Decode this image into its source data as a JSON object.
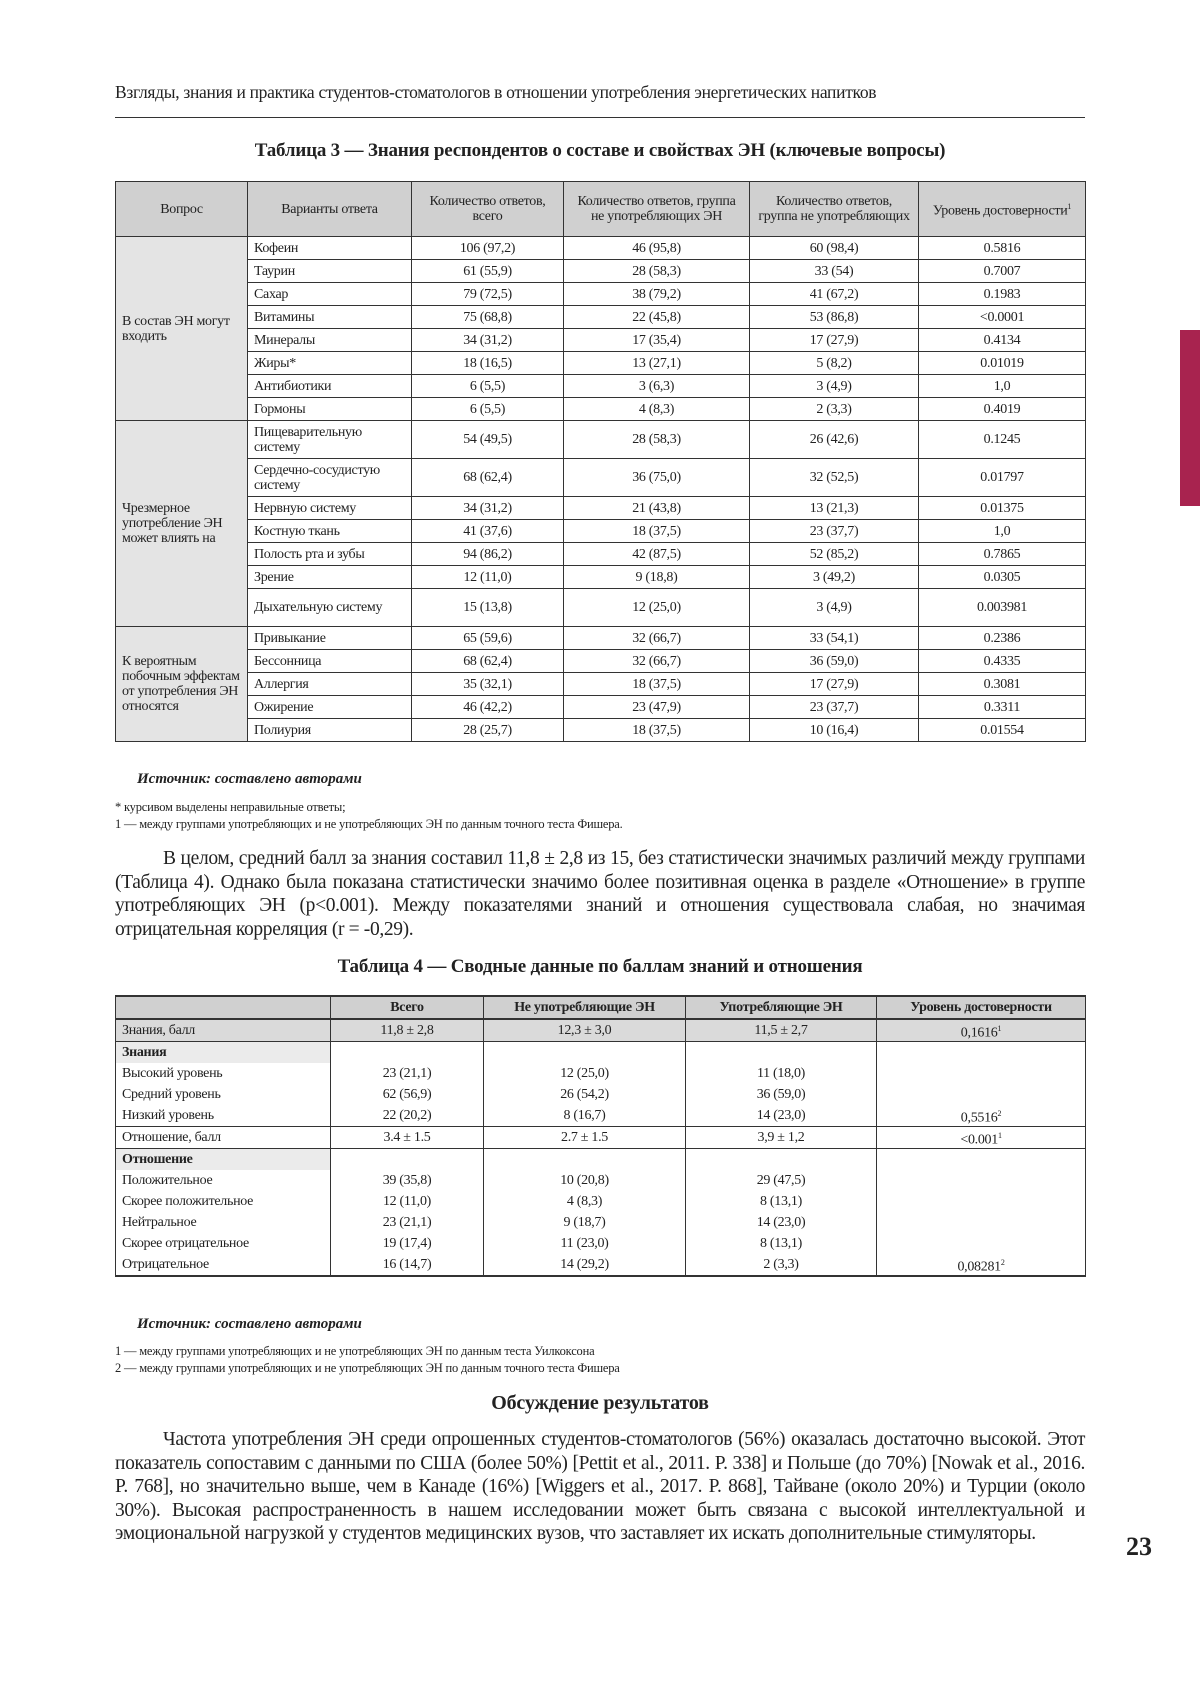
{
  "running_header": "Взгляды, знания и практика студентов-стоматологов в отношении употребления энергетических напитков",
  "table3": {
    "title": "Таблица 3 — Знания респондентов о составе и свойствах ЭН (ключевые вопросы)",
    "headers": [
      "Вопрос",
      "Варианты ответа",
      "Количество ответов, всего",
      "Количество ответов, группа не употребляющих ЭН",
      "Количество ответов, группа не употребляющих",
      "Уровень достоверности"
    ],
    "header_sup": "1",
    "groups": [
      {
        "question": "В состав ЭН могут входить",
        "rows": [
          [
            "Кофеин",
            "106 (97,2)",
            "46 (95,8)",
            "60 (98,4)",
            "0.5816"
          ],
          [
            "Таурин",
            "61 (55,9)",
            "28 (58,3)",
            "33 (54)",
            "0.7007"
          ],
          [
            "Сахар",
            "79 (72,5)",
            "38 (79,2)",
            "41 (67,2)",
            "0.1983"
          ],
          [
            "Витамины",
            "75 (68,8)",
            "22 (45,8)",
            "53 (86,8)",
            "<0.0001"
          ],
          [
            "Минералы",
            "34 (31,2)",
            "17 (35,4)",
            "17 (27,9)",
            "0.4134"
          ],
          [
            "Жиры*",
            "18 (16,5)",
            "13 (27,1)",
            "5 (8,2)",
            "0.01019"
          ],
          [
            "Антибиотики",
            "6 (5,5)",
            "3 (6,3)",
            "3 (4,9)",
            "1,0"
          ],
          [
            "Гормоны",
            "6 (5,5)",
            "4 (8,3)",
            "2 (3,3)",
            "0.4019"
          ]
        ]
      },
      {
        "question": "Чрезмерное употребление ЭН может влиять на",
        "rows": [
          [
            "Пищеварительную систему",
            "54 (49,5)",
            "28 (58,3)",
            "26 (42,6)",
            "0.1245"
          ],
          [
            "Сердечно-сосудистую систему",
            "68 (62,4)",
            "36 (75,0)",
            "32 (52,5)",
            "0.01797"
          ],
          [
            "Нервную систему",
            "34 (31,2)",
            "21 (43,8)",
            "13 (21,3)",
            "0.01375"
          ],
          [
            "Костную ткань",
            "41 (37,6)",
            "18 (37,5)",
            "23 (37,7)",
            "1,0"
          ],
          [
            "Полость рта и зубы",
            "94 (86,2)",
            "42 (87,5)",
            "52 (85,2)",
            "0.7865"
          ],
          [
            "Зрение",
            "12 (11,0)",
            "9 (18,8)",
            "3 (49,2)",
            "0.0305"
          ],
          [
            "Дыхательную систему",
            "15 (13,8)",
            "12 (25,0)",
            "3 (4,9)",
            "0.003981"
          ]
        ]
      },
      {
        "question": "К вероятным побочным эффектам от употребления ЭН относятся",
        "rows": [
          [
            "Привыкание",
            "65 (59,6)",
            "32 (66,7)",
            "33 (54,1)",
            "0.2386"
          ],
          [
            "Бессонница",
            "68 (62,4)",
            "32 (66,7)",
            "36 (59,0)",
            "0.4335"
          ],
          [
            "Аллергия",
            "35 (32,1)",
            "18 (37,5)",
            "17 (27,9)",
            "0.3081"
          ],
          [
            "Ожирение",
            "46 (42,2)",
            "23 (47,9)",
            "23 (37,7)",
            "0.3311"
          ],
          [
            "Полиурия",
            "28 (25,7)",
            "18 (37,5)",
            "10 (16,4)",
            "0.01554"
          ]
        ]
      }
    ],
    "source": "Источник: составлено авторами",
    "footnotes": [
      "* курсивом выделены неправильные ответы;",
      "1 — между группами употребляющих и не употребляющих ЭН по данным точного теста Фишера."
    ]
  },
  "paragraph1": "В целом, средний балл за знания составил 11,8 ± 2,8 из 15, без статистически значимых различий между группами (Таблица 4). Однако была показана статистически значимо более позитивная оценка в разделе «Отношение» в группе употребляющих ЭН (p<0.001). Между показателями знаний и отношения существовала слабая, но значимая отрицательная корреляция (r = -0,29).",
  "table4": {
    "title": "Таблица 4 — Сводные данные по баллам знаний и отношения",
    "headers": [
      "",
      "Всего",
      "Не употребляющие ЭН",
      "Употребляющие ЭН",
      "Уровень достоверности"
    ],
    "rows": [
      {
        "type": "grey",
        "cells": [
          "Знания, балл",
          "11,8 ± 2,8",
          "12,3 ± 3,0",
          "11,5 ± 2,7",
          "0,1616"
        ],
        "sup": "1"
      },
      {
        "type": "sec",
        "cells": [
          "Знания",
          "",
          "",
          "",
          ""
        ]
      },
      {
        "type": "",
        "cells": [
          "Высокий уровень",
          "23 (21,1)",
          "12 (25,0)",
          "11 (18,0)",
          ""
        ]
      },
      {
        "type": "",
        "cells": [
          "Средний уровень",
          "62 (56,9)",
          "26 (54,2)",
          "36 (59,0)",
          ""
        ]
      },
      {
        "type": "end",
        "cells": [
          "Низкий уровень",
          "22 (20,2)",
          "8 (16,7)",
          "14 (23,0)",
          "0,5516"
        ],
        "sup": "2"
      },
      {
        "type": "end",
        "cells": [
          "Отношение, балл",
          "3.4 ± 1.5",
          "2.7 ± 1.5",
          "3,9 ± 1,2",
          "<0.001"
        ],
        "sup": "1"
      },
      {
        "type": "sec",
        "cells": [
          "Отношение",
          "",
          "",
          "",
          ""
        ]
      },
      {
        "type": "",
        "cells": [
          "Положительное",
          "39 (35,8)",
          "10 (20,8)",
          "29 (47,5)",
          ""
        ]
      },
      {
        "type": "",
        "cells": [
          "Скорее положительное",
          "12 (11,0)",
          "4 (8,3)",
          "8 (13,1)",
          ""
        ]
      },
      {
        "type": "",
        "cells": [
          "Нейтральное",
          "23 (21,1)",
          "9 (18,7)",
          "14 (23,0)",
          ""
        ]
      },
      {
        "type": "",
        "cells": [
          "Скорее отрицательное",
          "19 (17,4)",
          "11 (23,0)",
          "8 (13,1)",
          ""
        ]
      },
      {
        "type": "last",
        "cells": [
          "Отрицательное",
          "16 (14,7)",
          "14 (29,2)",
          "2 (3,3)",
          "0,08281"
        ],
        "sup": "2"
      }
    ],
    "source": "Источник: составлено авторами",
    "footnotes": [
      "1 — между группами употребляющих и не употребляющих ЭН по данным теста Уилкоксона",
      "2 — между группами употребляющих и не употребляющих ЭН по данным точного теста Фишера"
    ]
  },
  "section_heading": "Обсуждение результатов",
  "paragraph2": "Частота употребления ЭН среди опрошенных студентов-стоматологов (56%) оказалась достаточно высокой. Этот показатель сопоставим с данными по США (более 50%) [Pettit et al., 2011. P. 338] и Польше (до 70%) [Nowak et al., 2016. P. 768], но значительно выше, чем в Канаде (16%) [Wiggers et al., 2017. P. 868], Тайване (около 20%) и Турции (около 30%). Высокая распространенность в нашем исследовании может быть связана с высокой интеллектуальной и эмоциональной нагрузкой у студентов медицинских вузов, что заставляет их искать дополнительные стимуляторы.",
  "page_number": "23",
  "colors": {
    "side_tab": "#a8234f",
    "header_bg": "#d0d0d0",
    "question_bg": "#e4e4e4"
  }
}
